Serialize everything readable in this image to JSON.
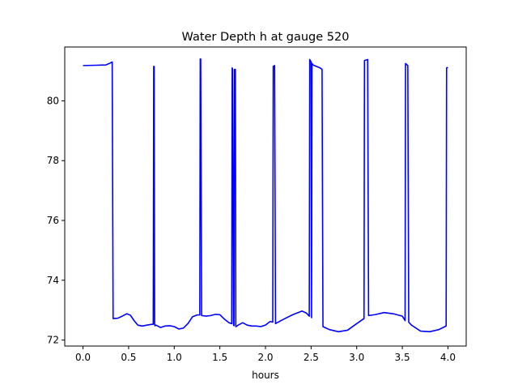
{
  "chart_data": {
    "type": "line",
    "title": "Water Depth h at gauge 520",
    "xlabel": "hours",
    "ylabel": "",
    "xlim": [
      -0.2,
      4.2
    ],
    "ylim": [
      71.8,
      81.8
    ],
    "xticks": [
      0.0,
      0.5,
      1.0,
      1.5,
      2.0,
      2.5,
      3.0,
      3.5,
      4.0
    ],
    "xtick_labels": [
      "0.0",
      "0.5",
      "1.0",
      "1.5",
      "2.0",
      "2.5",
      "3.0",
      "3.5",
      "4.0"
    ],
    "yticks": [
      72,
      74,
      76,
      78,
      80
    ],
    "ytick_labels": [
      "72",
      "74",
      "76",
      "78",
      "80"
    ],
    "grid": false,
    "series": [
      {
        "color": "#0000ff",
        "x": [
          0.0,
          0.15,
          0.25,
          0.29,
          0.32,
          0.33,
          0.38,
          0.43,
          0.48,
          0.52,
          0.56,
          0.6,
          0.65,
          0.7,
          0.74,
          0.77,
          0.775,
          0.78,
          0.785,
          0.79,
          0.8,
          0.85,
          0.9,
          0.95,
          1.0,
          1.05,
          1.1,
          1.15,
          1.2,
          1.25,
          1.28,
          1.285,
          1.29,
          1.3,
          1.35,
          1.4,
          1.45,
          1.5,
          1.55,
          1.6,
          1.63,
          1.635,
          1.64,
          1.65,
          1.655,
          1.66,
          1.67,
          1.675,
          1.68,
          1.7,
          1.75,
          1.8,
          1.85,
          1.9,
          1.95,
          2.0,
          2.05,
          2.08,
          2.085,
          2.1,
          2.11,
          2.2,
          2.3,
          2.4,
          2.45,
          2.48,
          2.485,
          2.5,
          2.505,
          2.51,
          2.52,
          2.6,
          2.62,
          2.63,
          2.7,
          2.8,
          2.9,
          3.0,
          3.08,
          3.085,
          3.12,
          3.13,
          3.2,
          3.3,
          3.4,
          3.5,
          3.53,
          3.535,
          3.56,
          3.57,
          3.6,
          3.7,
          3.8,
          3.9,
          3.98,
          3.985,
          4.0
        ],
        "y": [
          81.18,
          81.19,
          81.2,
          81.25,
          81.3,
          72.72,
          72.73,
          72.8,
          72.88,
          72.83,
          72.65,
          72.5,
          72.47,
          72.5,
          72.52,
          72.53,
          81.15,
          81.15,
          72.52,
          72.48,
          72.5,
          72.42,
          72.47,
          72.48,
          72.45,
          72.37,
          72.4,
          72.55,
          72.78,
          72.84,
          72.84,
          81.4,
          81.4,
          72.82,
          72.8,
          72.82,
          72.86,
          72.85,
          72.7,
          72.58,
          72.55,
          81.1,
          81.05,
          72.5,
          72.48,
          81.05,
          81.05,
          72.45,
          72.45,
          72.5,
          72.58,
          72.5,
          72.47,
          72.47,
          72.45,
          72.5,
          72.62,
          72.6,
          81.15,
          81.18,
          72.55,
          72.7,
          72.85,
          72.97,
          72.9,
          72.8,
          81.38,
          81.3,
          72.75,
          81.25,
          81.2,
          81.1,
          81.05,
          72.45,
          72.35,
          72.28,
          72.33,
          72.55,
          72.72,
          81.35,
          81.38,
          72.82,
          72.85,
          72.92,
          72.88,
          72.8,
          72.65,
          81.25,
          81.18,
          72.6,
          72.5,
          72.3,
          72.28,
          72.35,
          72.47,
          81.1,
          81.12
        ]
      }
    ]
  }
}
